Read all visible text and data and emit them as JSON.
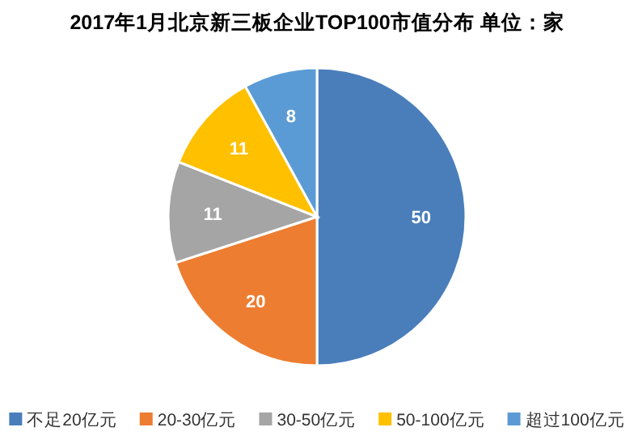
{
  "chart_data": {
    "type": "pie",
    "title": "2017年1月北京新三板企业TOP100市值分布 单位：家",
    "categories": [
      "不足20亿元",
      "20-30亿元",
      "30-50亿元",
      "50-100亿元",
      "超过100亿元"
    ],
    "values": [
      50,
      20,
      11,
      11,
      8
    ],
    "colors": [
      "#4a7ebb",
      "#ed7d31",
      "#a5a5a5",
      "#ffc000",
      "#5b9bd5"
    ],
    "data_labels": true,
    "legend": "bottom"
  }
}
